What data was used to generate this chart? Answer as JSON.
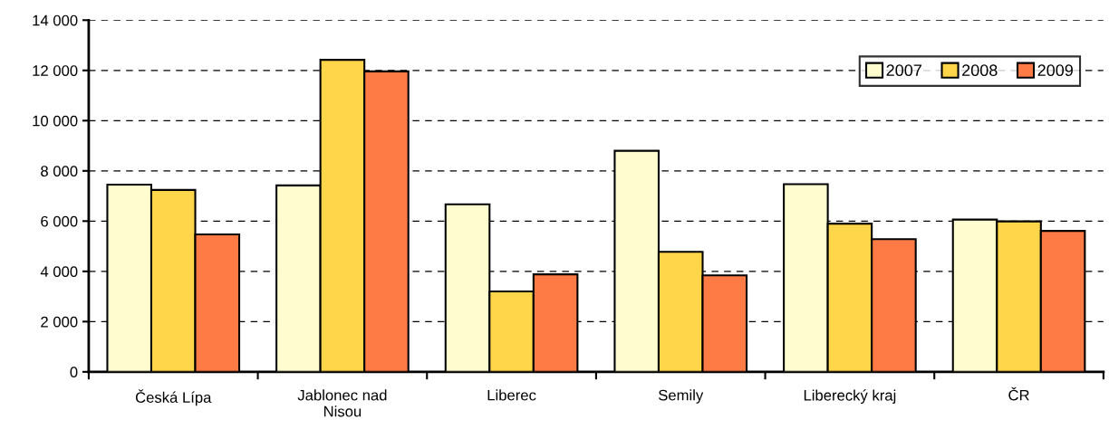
{
  "chart_data": {
    "type": "bar",
    "categories": [
      "Česká Lípa",
      "Jablonec nad Nisou",
      "Liberec",
      "Semily",
      "Liberecký kraj",
      "ČR"
    ],
    "series": [
      {
        "name": "2007",
        "color": "#fffdd0",
        "values": [
          7450,
          7420,
          6670,
          8800,
          7470,
          6060
        ]
      },
      {
        "name": "2008",
        "color": "#ffd54a",
        "values": [
          7240,
          12420,
          3200,
          4780,
          5900,
          5990
        ]
      },
      {
        "name": "2009",
        "color": "#ff7b45",
        "values": [
          5470,
          11960,
          3880,
          3840,
          5280,
          5610
        ]
      }
    ],
    "ylim": [
      0,
      14000
    ],
    "yticks": [
      {
        "value": 0,
        "label": "0"
      },
      {
        "value": 2000,
        "label": "2 000"
      },
      {
        "value": 4000,
        "label": "4 000"
      },
      {
        "value": 6000,
        "label": "6 000"
      },
      {
        "value": 8000,
        "label": "8 000"
      },
      {
        "value": 10000,
        "label": "10 000"
      },
      {
        "value": 12000,
        "label": "12 000"
      },
      {
        "value": 14000,
        "label": "14 000"
      }
    ],
    "grid": "y",
    "legend": "top right"
  }
}
